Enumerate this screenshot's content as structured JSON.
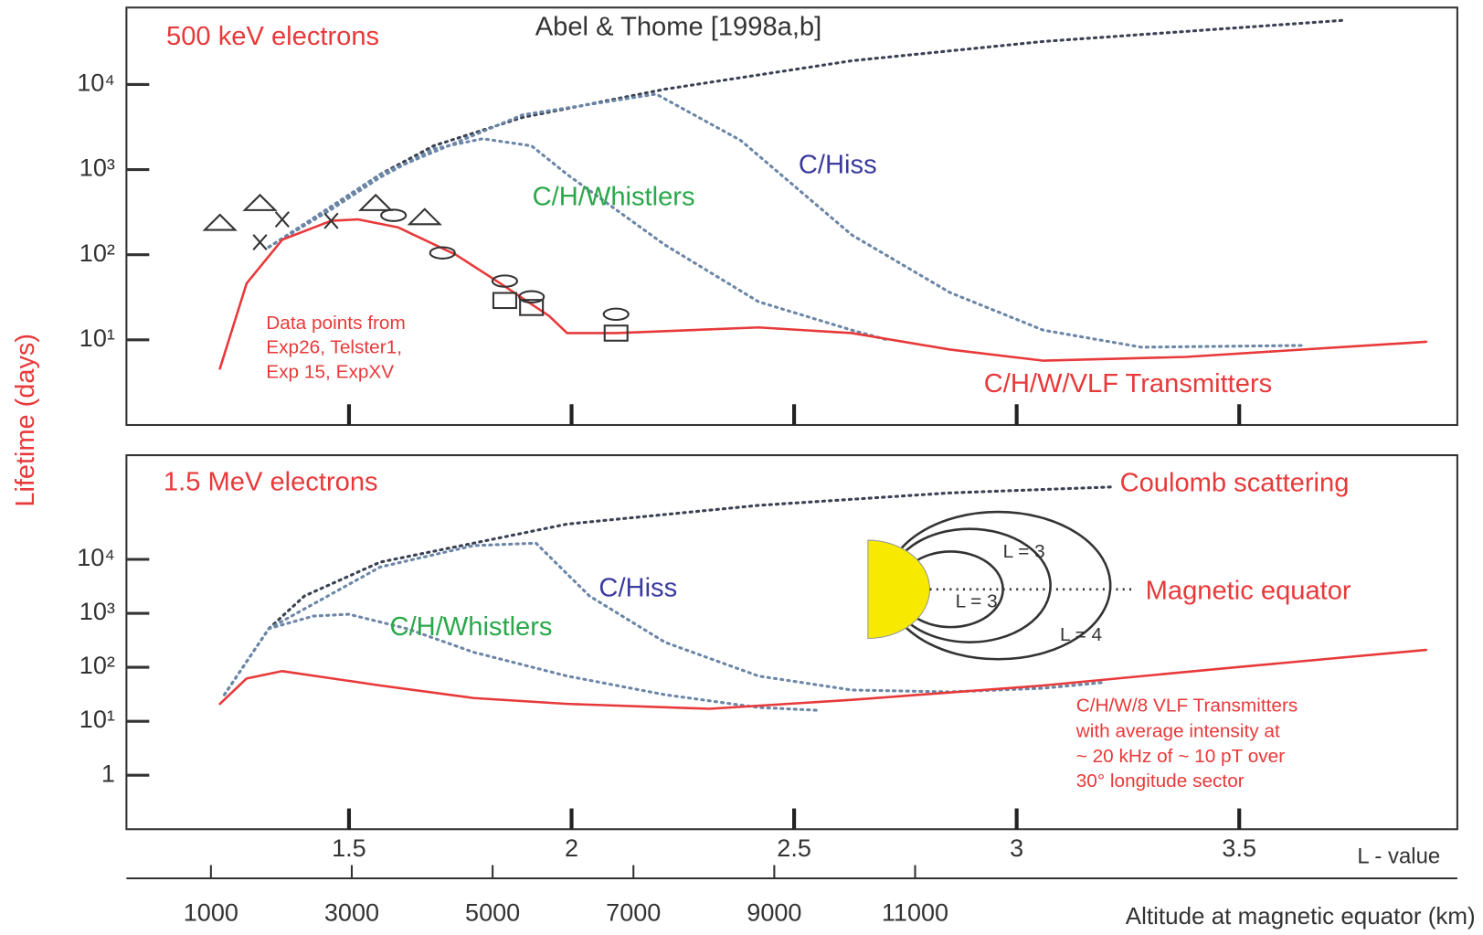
{
  "chart_data": [
    {
      "type": "line",
      "log_y": true,
      "ylabel": "Lifetime (days)",
      "annotations": [
        "500 keV electrons",
        "Abel & Thome [1998a,b]",
        "Data points from",
        "Exp26, Telster1,",
        "Exp 15, ExpXV"
      ],
      "xlim": [
        1,
        3.99
      ],
      "xticks": [
        1.5,
        2,
        2.5,
        3,
        3.5
      ],
      "xtick_labels": false,
      "ylim": [
        1,
        80000
      ],
      "yticks": [
        {
          "value": 10,
          "label": "10¹"
        },
        {
          "value": 100,
          "label": "10²"
        },
        {
          "value": 1000,
          "label": "10³"
        },
        {
          "value": 10000,
          "label": "10⁴"
        }
      ],
      "series": [
        {
          "style": "dotted",
          "color": "#3a4152",
          "x": [
            1.32,
            1.46,
            1.57,
            1.69,
            1.89,
            2.21,
            2.63,
            3.06,
            3.74
          ],
          "values": [
            123,
            360,
            880,
            1900,
            4100,
            8800,
            19000,
            32000,
            57000
          ]
        },
        {
          "name": "C/H/Whistlers",
          "label_color": "#2aa84a",
          "style": "dotted",
          "color": "#6b86a6",
          "x": [
            1.32,
            1.46,
            1.57,
            1.69,
            1.8,
            1.91,
            1.99,
            2.21,
            2.42,
            2.63,
            2.71
          ],
          "values": [
            123,
            340,
            810,
            1750,
            2300,
            1900,
            880,
            130,
            28,
            13,
            10
          ]
        },
        {
          "name": "C/Hiss",
          "label_color": "#3a3aa0",
          "style": "dotted",
          "color": "#6b86a6",
          "x": [
            1.32,
            1.57,
            1.89,
            2.19,
            2.38,
            2.63,
            2.85,
            3.06,
            3.28,
            3.64
          ],
          "values": [
            123,
            880,
            4400,
            7700,
            2200,
            170,
            36,
            13,
            8.2,
            8.6
          ]
        },
        {
          "name": "C/H/W/VLF Transmitters",
          "label_color": "#e8393a",
          "style": "solid",
          "color": "#e8393a",
          "x": [
            1.21,
            1.27,
            1.35,
            1.46,
            1.52,
            1.61,
            1.74,
            1.84,
            1.95,
            1.99,
            2.1,
            2.42,
            2.63,
            2.85,
            3.06,
            3.38,
            3.92
          ],
          "values": [
            4.6,
            46,
            150,
            250,
            260,
            210,
            100,
            46,
            19,
            12,
            12,
            14,
            12,
            7.7,
            5.7,
            6.3,
            9.5
          ]
        },
        {
          "style": "triangle",
          "color": "#333333",
          "x": [
            1.21,
            1.3,
            1.56,
            1.67
          ],
          "values": [
            240,
            410,
            410,
            280
          ]
        },
        {
          "style": "cross",
          "color": "#333333",
          "x": [
            1.3,
            1.35,
            1.46
          ],
          "values": [
            140,
            260,
            250
          ]
        },
        {
          "style": "oval",
          "color": "#333333",
          "x": [
            1.6,
            1.71,
            1.85,
            1.91,
            2.1
          ],
          "values": [
            290,
            105,
            49,
            32,
            20
          ]
        },
        {
          "style": "square",
          "color": "#333333",
          "x": [
            1.85,
            1.91,
            2.1
          ],
          "values": [
            29,
            24,
            12
          ]
        }
      ]
    },
    {
      "type": "line",
      "log_y": true,
      "annotations": [
        "1.5 MeV electrons",
        "Magnetic equator",
        "L = 3",
        "L = 3",
        "L = 4",
        "with average intensity at",
        "~ 20 kHz of ~ 10 pT over",
        "30° longitude sector"
      ],
      "xlim": [
        1,
        3.99
      ],
      "xticks": [
        1.5,
        2,
        2.5,
        3,
        3.5
      ],
      "xtick_labels": true,
      "xlabel": "L - value",
      "x2lim": [
        -200,
        18700
      ],
      "x2ticks": [
        1000,
        3000,
        5000,
        7000,
        9000,
        11000
      ],
      "x2label": "Altitude at magnetic equator (km)",
      "ylim": [
        0.1,
        850000
      ],
      "yticks": [
        1,
        {
          "value": 10,
          "label": "10¹"
        },
        {
          "value": 100,
          "label": "10²"
        },
        {
          "value": 1000,
          "label": "10³"
        },
        {
          "value": 10000,
          "label": "10⁴"
        }
      ],
      "series": [
        {
          "name": "Coulomb scattering",
          "label_color": "#e8393a",
          "style": "dotted",
          "color": "#3a4152",
          "x": [
            1.32,
            1.4,
            1.57,
            1.78,
            1.99,
            2.42,
            2.85,
            3.22
          ],
          "values": [
            520,
            2100,
            8900,
            20000,
            45000,
            100000,
            170000,
            220000
          ]
        },
        {
          "name": "C/H/Whistlers",
          "label_color": "#2aa84a",
          "style": "dotted",
          "color": "#6b86a6",
          "x": [
            1.22,
            1.32,
            1.42,
            1.5,
            1.63,
            1.78,
            1.99,
            2.21,
            2.42,
            2.55
          ],
          "values": [
            31,
            520,
            890,
            960,
            520,
            190,
            69,
            31,
            18,
            16
          ]
        },
        {
          "name": "C/Hiss",
          "label_color": "#3a3aa0",
          "style": "dotted",
          "color": "#6b86a6",
          "x": [
            1.22,
            1.32,
            1.57,
            1.78,
            1.92,
            2.04,
            2.21,
            2.42,
            2.63,
            2.85,
            3.06,
            3.19
          ],
          "values": [
            31,
            520,
            7200,
            18000,
            20000,
            2100,
            290,
            69,
            38,
            35,
            41,
            52
          ]
        },
        {
          "name": "C/H/W/8 VLF Transmitters",
          "label_color": "#e8393a",
          "style": "solid",
          "color": "#e8393a",
          "x": [
            1.21,
            1.27,
            1.35,
            1.57,
            1.78,
            1.99,
            2.31,
            2.63,
            3.06,
            3.49,
            3.92
          ],
          "values": [
            21,
            62,
            85,
            46,
            27,
            21,
            17,
            25,
            46,
            100,
            210
          ]
        }
      ]
    }
  ]
}
